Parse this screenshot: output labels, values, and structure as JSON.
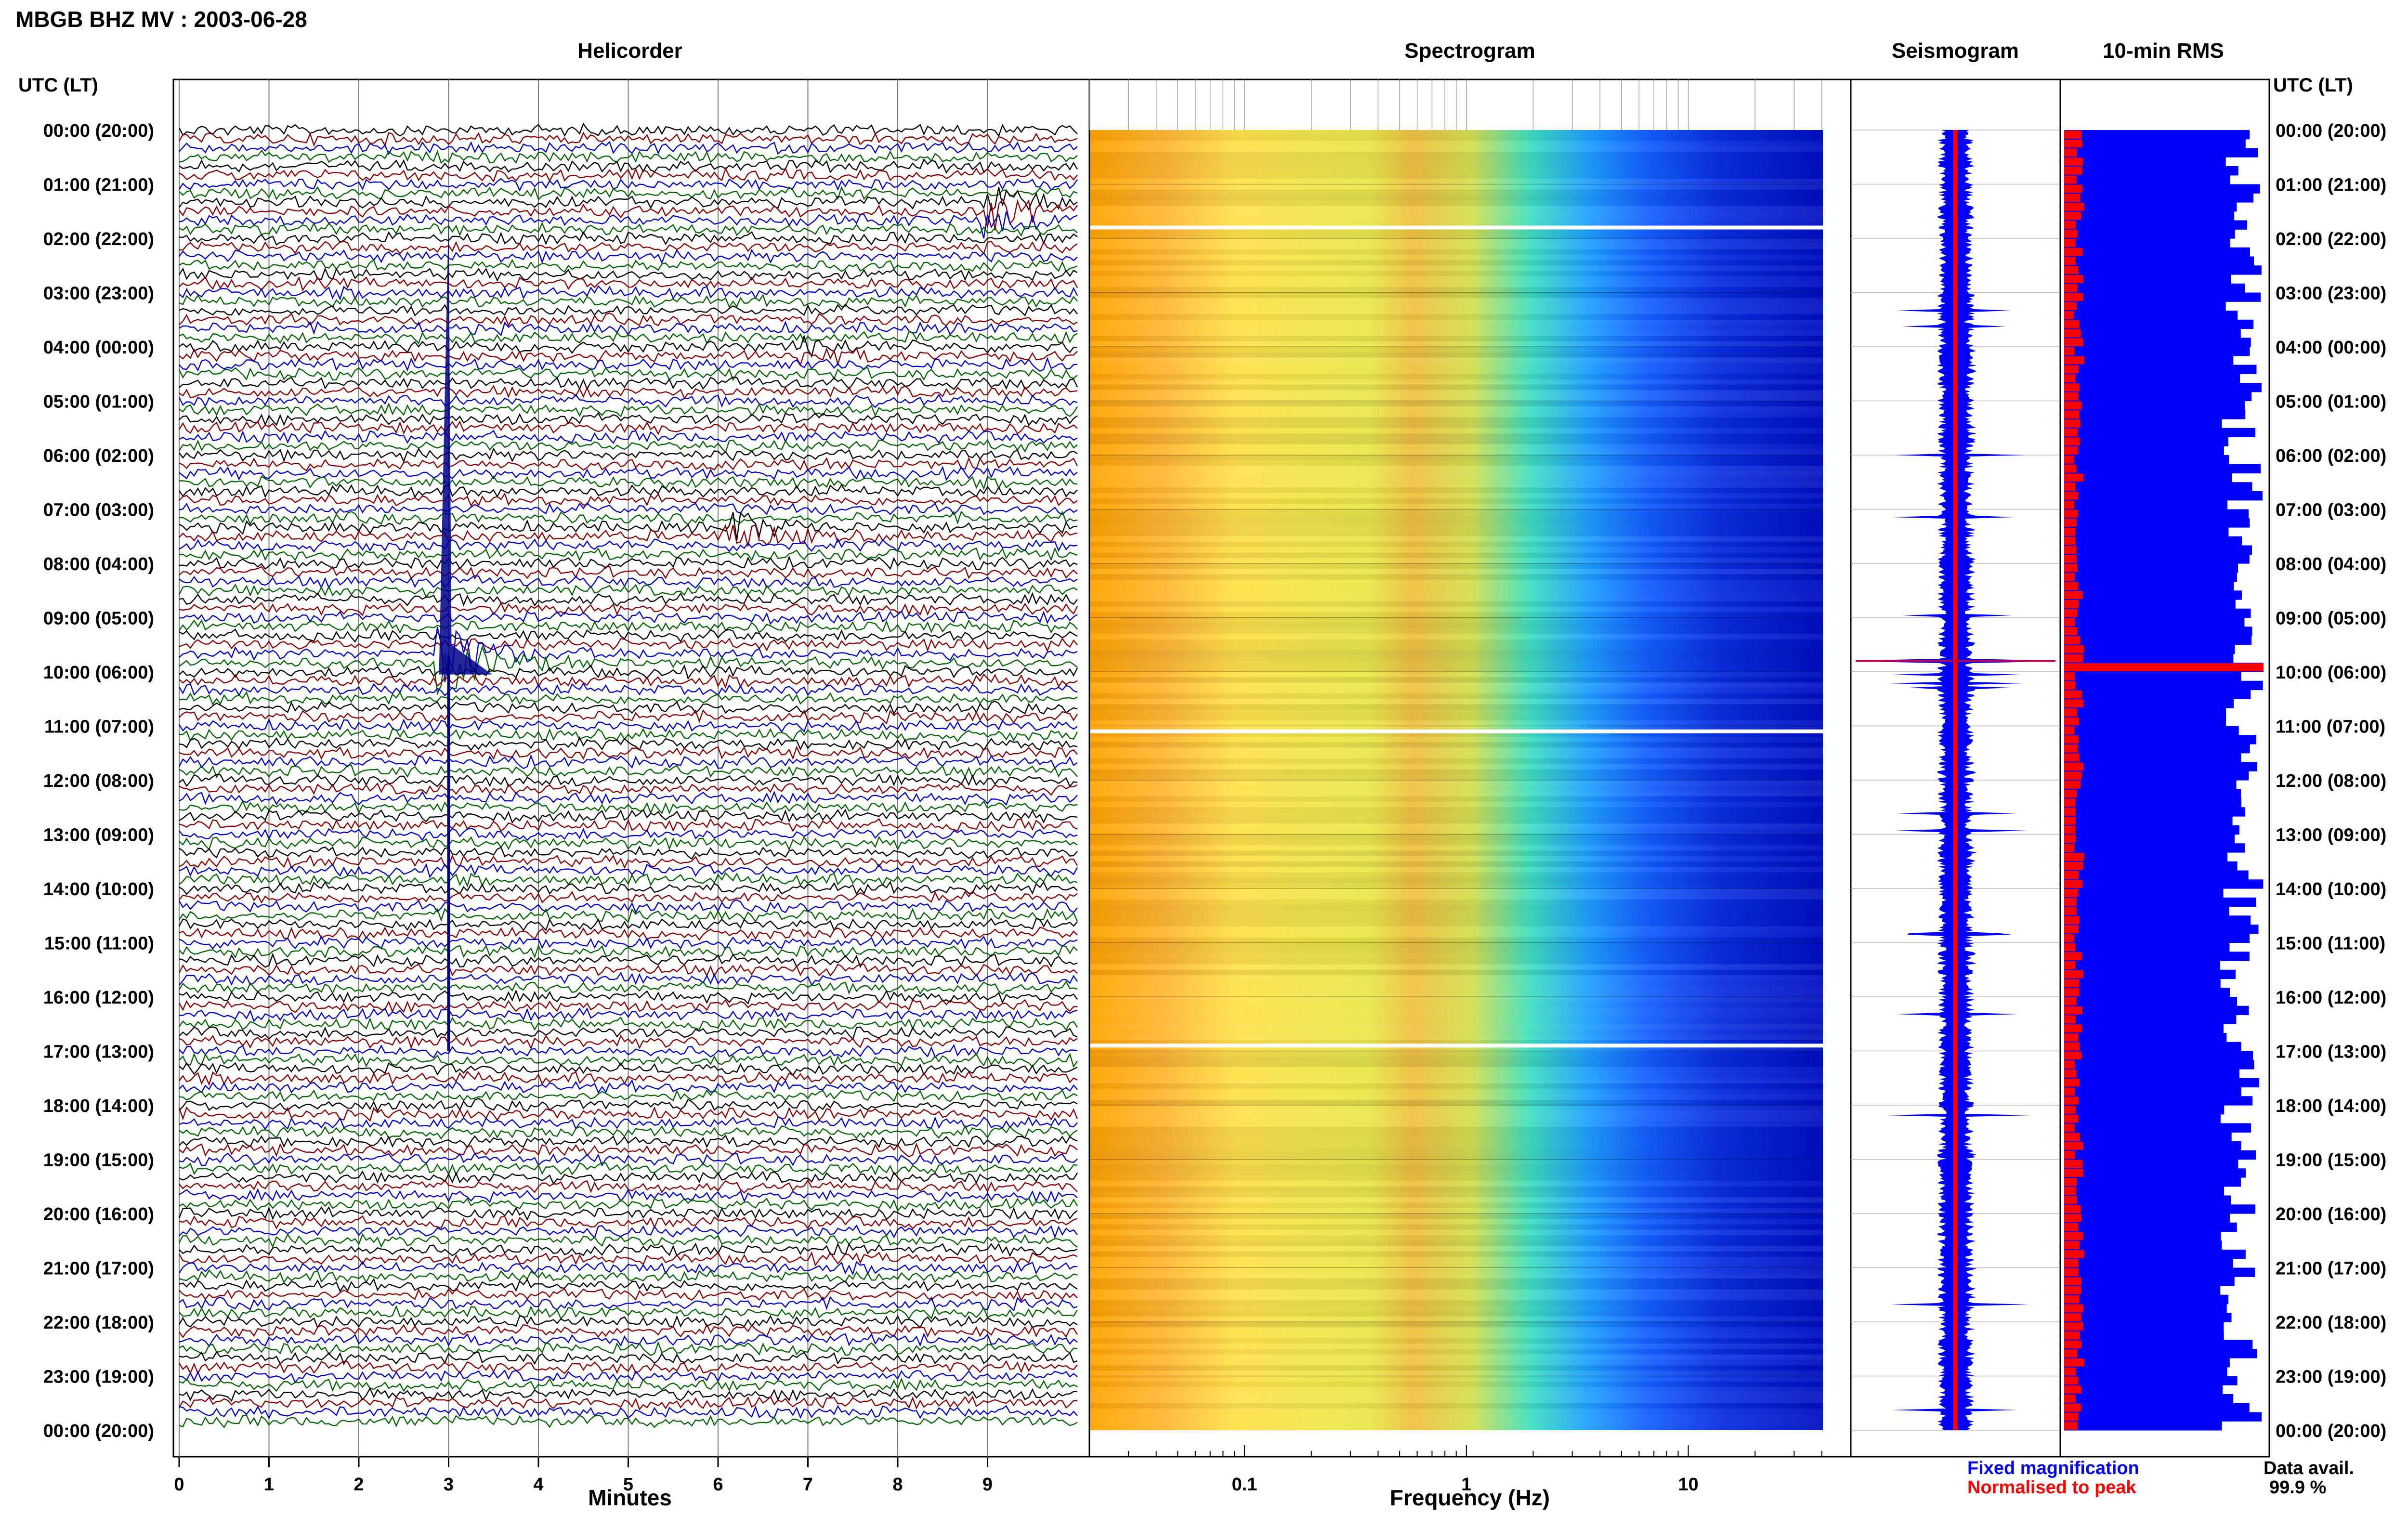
{
  "page": {
    "title": "MBGB BHZ MV : 2003-06-28",
    "time_axis_label": "UTC (LT)",
    "time_labels": [
      "00:00 (20:00)",
      "01:00 (21:00)",
      "02:00 (22:00)",
      "03:00 (23:00)",
      "04:00 (00:00)",
      "05:00 (01:00)",
      "06:00 (02:00)",
      "07:00 (03:00)",
      "08:00 (04:00)",
      "09:00 (05:00)",
      "10:00 (06:00)",
      "11:00 (07:00)",
      "12:00 (08:00)",
      "13:00 (09:00)",
      "14:00 (10:00)",
      "15:00 (11:00)",
      "16:00 (12:00)",
      "17:00 (13:00)",
      "18:00 (14:00)",
      "19:00 (15:00)",
      "20:00 (16:00)",
      "21:00 (17:00)",
      "22:00 (18:00)",
      "23:00 (19:00)",
      "00:00 (20:00)"
    ],
    "colors": {
      "trace_colors": [
        "#000000",
        "#8b0000",
        "#0000cd",
        "#006400"
      ],
      "fixed": "#0000ff",
      "normalised": "#ff0000",
      "rms_bar": "#0000ff"
    },
    "legend": {
      "fixed_magnification": "Fixed magnification",
      "normalised_to_peak": "Normalised to peak",
      "data_avail_label": "Data avail.",
      "data_avail_value": "99.9 %"
    }
  },
  "chart_data": [
    {
      "type": "line",
      "title": "Helicorder",
      "xlabel": "Minutes",
      "xlim": [
        0,
        10
      ],
      "xticks": [
        "0",
        "1",
        "2",
        "3",
        "4",
        "5",
        "6",
        "7",
        "8",
        "9"
      ],
      "rows": 144,
      "row_minutes": 10,
      "events": [
        {
          "hour": 1.5,
          "minute": 9.1,
          "amplitude": "medium"
        },
        {
          "hour": 4.1,
          "minute": 7.0,
          "amplitude": "low"
        },
        {
          "hour": 7.4,
          "minute": 6.2,
          "amplitude": "medium"
        },
        {
          "hour": 9.7,
          "minute": 3.0,
          "amplitude": "large"
        }
      ]
    },
    {
      "type": "heatmap",
      "title": "Spectrogram",
      "xlabel": "Frequency (Hz)",
      "xscale": "log",
      "xlim": [
        0.02,
        40
      ],
      "xticks": [
        "0.1",
        "1",
        "10"
      ],
      "gaps_hour": [
        1.8,
        11.1,
        16.9
      ]
    },
    {
      "type": "line",
      "title": "Seismogram",
      "peak_hour": 9.8
    },
    {
      "type": "bar",
      "title": "10-min RMS",
      "orientation": "horizontal",
      "peak_hour": 9.8
    }
  ]
}
